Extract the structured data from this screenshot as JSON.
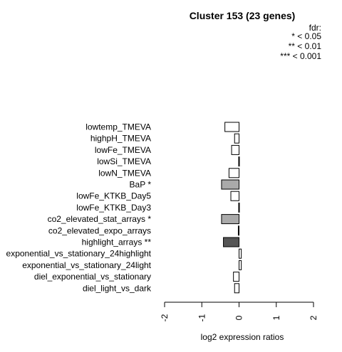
{
  "chart_data": {
    "type": "bar",
    "orientation": "horizontal",
    "title": "Cluster 153 (23 genes)",
    "legend": {
      "title": "fdr:",
      "entries": [
        "* < 0.05",
        "** < 0.01",
        "*** < 0.001"
      ]
    },
    "xlabel": "log2 expression ratios",
    "xlim": [
      -2,
      2
    ],
    "xticks": [
      "-2",
      "-1",
      "0",
      "1",
      "2"
    ],
    "xtick_values": [
      -2,
      -1,
      0,
      1,
      2
    ],
    "colors": {
      "default": "#ffffff",
      "fdr_05": "#aaaaaa",
      "fdr_01": "#555555",
      "stroke": "#000000"
    },
    "categories": [
      "lowtemp_TMEVA",
      "highpH_TMEVA",
      "lowFe_TMEVA",
      "lowSi_TMEVA",
      "lowN_TMEVA",
      "BaP *",
      "lowFe_KTKB_Day5",
      "lowFe_KTKB_Day3",
      "co2_elevated_stat_arrays *",
      "co2_elevated_expo_arrays",
      "highlight_arrays **",
      "exponential_vs_stationary_24highlight",
      "exponential_vs_stationary_24light",
      "diel_exponential_vs_stationary",
      "diel_light_vs_dark"
    ],
    "values": [
      -0.38,
      -0.12,
      -0.2,
      -0.01,
      -0.27,
      -0.47,
      -0.22,
      -0.01,
      -0.47,
      -0.02,
      -0.42,
      0.06,
      0.06,
      -0.15,
      -0.12
    ],
    "significance": [
      "",
      "",
      "",
      "",
      "",
      "*",
      "",
      "",
      "*",
      "",
      "**",
      "",
      "",
      "",
      ""
    ]
  }
}
